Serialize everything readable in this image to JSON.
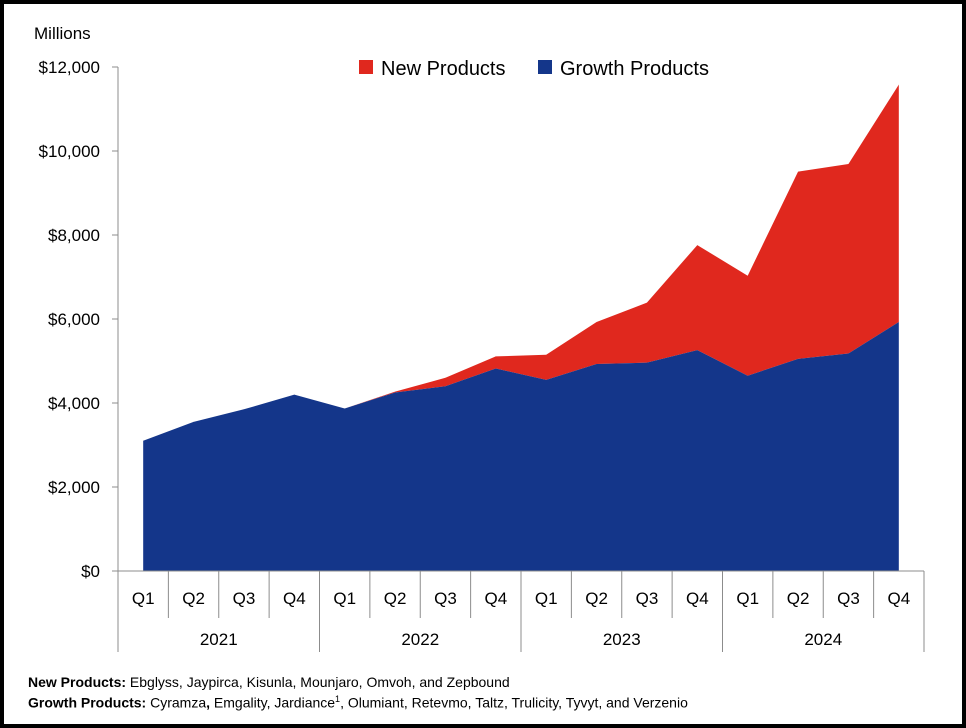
{
  "chart_data": {
    "type": "area",
    "stacked": true,
    "ylabel": "Millions",
    "ylim": [
      0,
      12000
    ],
    "yticks": [
      "$0",
      "$2,000",
      "$4,000",
      "$6,000",
      "$8,000",
      "$10,000",
      "$12,000"
    ],
    "ytick_values": [
      0,
      2000,
      4000,
      6000,
      8000,
      10000,
      12000
    ],
    "categories": [
      "Q1",
      "Q2",
      "Q3",
      "Q4",
      "Q1",
      "Q2",
      "Q3",
      "Q4",
      "Q1",
      "Q2",
      "Q3",
      "Q4",
      "Q1",
      "Q2",
      "Q3",
      "Q4"
    ],
    "years": [
      "2021",
      "2022",
      "2023",
      "2024"
    ],
    "legend_position": "top-center",
    "grid": false,
    "series": [
      {
        "name": "Growth Products",
        "color": "#14368a",
        "values": [
          3100,
          3550,
          3850,
          4200,
          3870,
          4250,
          4400,
          4820,
          4550,
          4930,
          4960,
          5260,
          4650,
          5050,
          5180,
          5930
        ]
      },
      {
        "name": "New Products",
        "color": "#e0281e",
        "values": [
          0,
          0,
          0,
          0,
          0,
          20,
          200,
          290,
          600,
          1000,
          1430,
          2500,
          2380,
          4460,
          4510,
          5650
        ]
      }
    ]
  },
  "footnotes": {
    "new_label": "New Products:",
    "new_text": " Ebglyss, Jaypirca, Kisunla, Mounjaro, Omvoh, and Zepbound",
    "growth_label": "Growth Products:",
    "growth_text_a": " Cyramza",
    "growth_comma": ",",
    "growth_text_b": " Emgality, Jardiance",
    "growth_sup": "1",
    "growth_text_c": ", Olumiant, Retevmo, Taltz, Trulicity, Tyvyt, and Verzenio"
  }
}
